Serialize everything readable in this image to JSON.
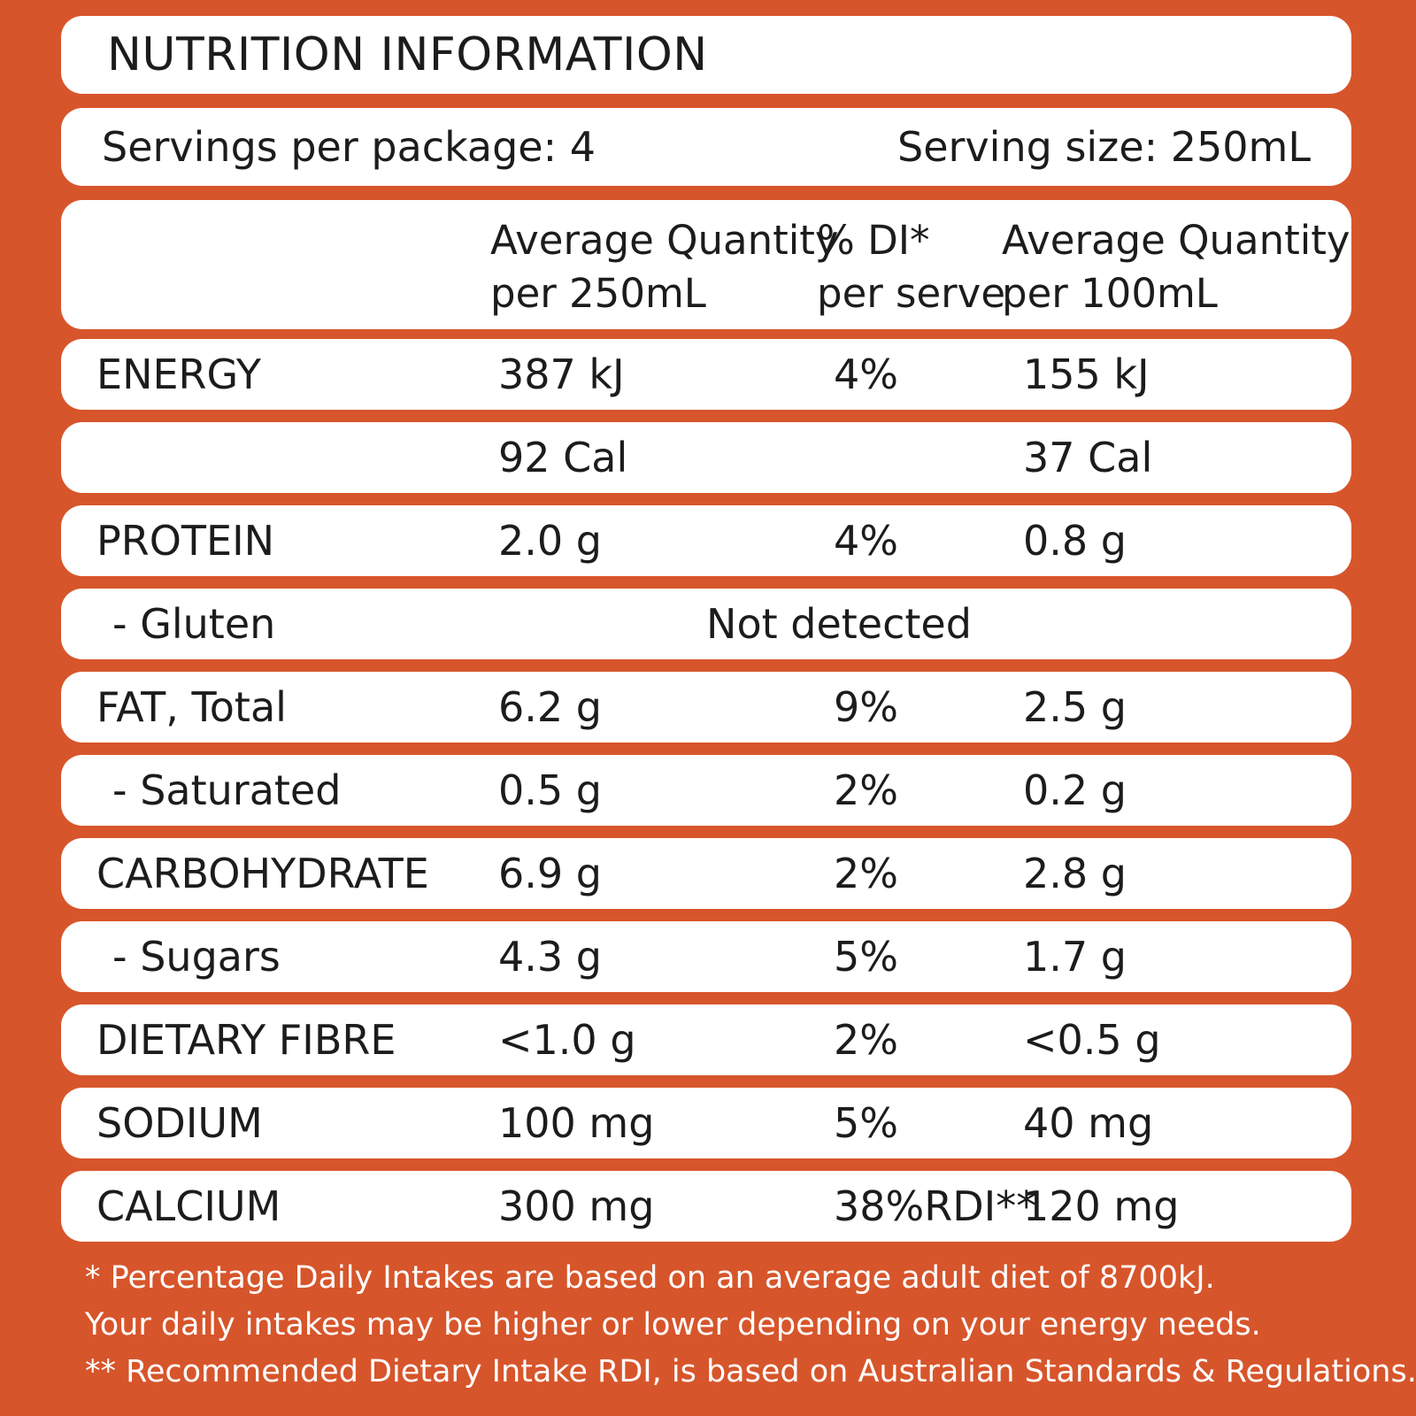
{
  "title": "NUTRITION INFORMATION",
  "servings_per_package": "Servings per package: 4",
  "serving_size": "Serving size: 250mL",
  "columns": {
    "qty_serve": "Average Quantity\nper 250mL",
    "di_serve": "% DI*\nper serve",
    "qty_100": "Average Quantity\nper 100mL"
  },
  "rows": [
    {
      "label": "ENERGY",
      "qty": "387 kJ",
      "di": "4%",
      "qty100": "155 kJ"
    },
    {
      "label": "",
      "qty": "92 Cal",
      "di": "",
      "qty100": "37 Cal"
    },
    {
      "label": "PROTEIN",
      "qty": "2.0 g",
      "di": "4%",
      "qty100": "0.8 g"
    },
    {
      "label": "- Gluten",
      "note": "Not detected"
    },
    {
      "label": "FAT, Total",
      "qty": "6.2 g",
      "di": "9%",
      "qty100": "2.5 g"
    },
    {
      "label": "- Saturated",
      "qty": "0.5 g",
      "di": "2%",
      "qty100": "0.2 g"
    },
    {
      "label": "CARBOHYDRATE",
      "qty": "6.9 g",
      "di": "2%",
      "qty100": "2.8 g"
    },
    {
      "label": "- Sugars",
      "qty": "4.3 g",
      "di": "5%",
      "qty100": "1.7 g"
    },
    {
      "label": "DIETARY FIBRE",
      "qty": "<1.0 g",
      "di": "2%",
      "qty100": "<0.5 g"
    },
    {
      "label": "SODIUM",
      "qty": "100 mg",
      "di": "5%",
      "qty100": "40 mg"
    },
    {
      "label": "CALCIUM",
      "qty": "300 mg",
      "di": "38%RDI**",
      "qty100": "120 mg"
    }
  ],
  "footnotes": [
    "* Percentage Daily Intakes are based on an average adult diet of 8700kJ.",
    "Your daily intakes may be higher or lower depending on your energy needs.",
    "** Recommended Dietary Intake RDI, is based on Australian Standards & Regulations."
  ],
  "colors": {
    "background": "#d7552b",
    "panel": "#ffffff",
    "text": "#1c1c1c",
    "footnote_text": "#ffffff"
  }
}
